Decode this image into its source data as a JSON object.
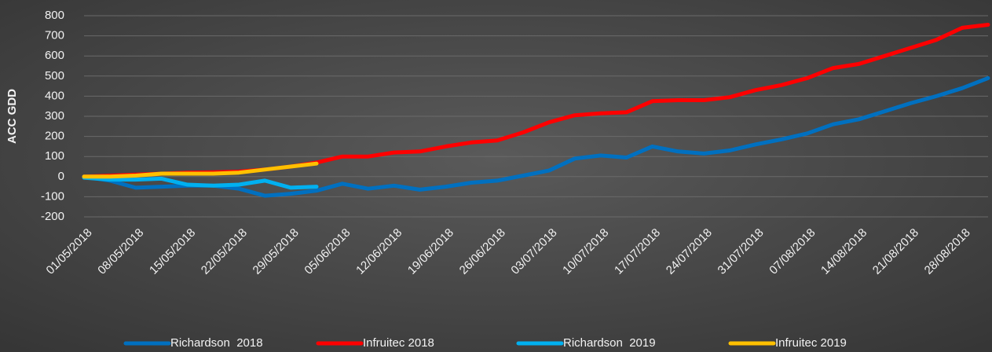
{
  "chart_data": {
    "type": "line",
    "y_label": "ACC GDD",
    "categories": [
      "01/05/2018",
      null,
      "08/05/2018",
      null,
      "15/05/2018",
      null,
      "22/05/2018",
      null,
      "29/05/2018",
      null,
      "05/06/2018",
      null,
      "12/06/2018",
      null,
      "19/06/2018",
      null,
      "26/06/2018",
      null,
      "03/07/2018",
      null,
      "10/07/2018",
      null,
      "17/07/2018",
      null,
      "24/07/2018",
      null,
      "31/07/2018",
      null,
      "07/08/2018",
      null,
      "14/08/2018",
      null,
      "21/08/2018",
      null,
      "28/08/2018",
      null
    ],
    "series": [
      {
        "name": "Richardson  2018",
        "color": "#0070c0",
        "values": [
          0,
          -20,
          -55,
          -50,
          -45,
          -45,
          -60,
          -95,
          -85,
          -70,
          -35,
          -60,
          -45,
          -65,
          -50,
          -30,
          -20,
          5,
          30,
          90,
          105,
          95,
          150,
          125,
          115,
          130,
          160,
          185,
          215,
          260,
          285,
          325,
          365,
          400,
          440,
          490
        ]
      },
      {
        "name": "Infruitec 2018",
        "color": "#ff0000",
        "values": [
          0,
          5,
          10,
          15,
          20,
          22,
          25,
          35,
          50,
          70,
          100,
          100,
          120,
          125,
          150,
          170,
          180,
          220,
          270,
          305,
          315,
          320,
          375,
          380,
          380,
          395,
          430,
          455,
          490,
          540,
          560,
          600,
          640,
          680,
          740,
          755
        ]
      },
      {
        "name": "Richardson  2019",
        "color": "#00b0f0",
        "values": [
          -5,
          -15,
          -15,
          -10,
          -40,
          -45,
          -40,
          -20,
          -55,
          -50,
          null,
          null,
          null,
          null,
          null,
          null,
          null,
          null,
          null,
          null,
          null,
          null,
          null,
          null,
          null,
          null,
          null,
          null,
          null,
          null,
          null,
          null,
          null,
          null,
          null,
          null
        ]
      },
      {
        "name": "Infruitec 2019",
        "color": "#ffc000",
        "values": [
          0,
          0,
          5,
          15,
          15,
          15,
          20,
          35,
          50,
          65,
          null,
          null,
          null,
          null,
          null,
          null,
          null,
          null,
          null,
          null,
          null,
          null,
          null,
          null,
          null,
          null,
          null,
          null,
          null,
          null,
          null,
          null,
          null,
          null,
          null,
          null
        ]
      }
    ],
    "ylim": [
      -200,
      800
    ],
    "yticks": [
      -200,
      -100,
      0,
      100,
      200,
      300,
      400,
      500,
      600,
      700,
      800
    ],
    "grid": true,
    "legend": "bottom"
  }
}
